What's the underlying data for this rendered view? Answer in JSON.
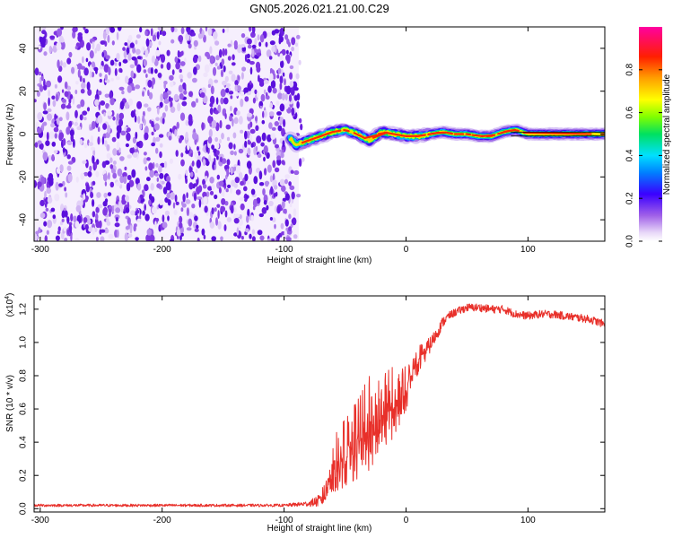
{
  "title": "GN05.2026.021.21.00.C29",
  "chart_data": [
    {
      "type": "heatmap",
      "name": "spectrogram",
      "xlabel": "Height of straight line (km)",
      "ylabel": "Frequency (Hz)",
      "xlim": [
        -305,
        163
      ],
      "ylim": [
        -50,
        50
      ],
      "xticks": [
        -300,
        -200,
        -100,
        0,
        100
      ],
      "yticks": [
        -40,
        -20,
        0,
        20,
        40
      ],
      "noise_region_x": [
        -305,
        -88
      ],
      "signal_ridge": {
        "x": [
          -95,
          -90,
          -80,
          -70,
          -60,
          -50,
          -40,
          -30,
          -20,
          -10,
          0,
          10,
          20,
          30,
          40,
          50,
          60,
          70,
          80,
          90,
          100,
          110,
          120,
          130,
          140,
          150,
          163
        ],
        "y": [
          -2,
          -5,
          -3,
          -1,
          1,
          2,
          0,
          -3,
          1,
          0,
          -1,
          -1,
          0,
          1,
          0,
          0,
          -1,
          -1,
          1,
          2,
          0,
          0,
          0,
          0,
          0,
          0,
          0
        ]
      },
      "colorbar": {
        "label": "Normalized spectral amplitude",
        "range": [
          0.0,
          1.0
        ],
        "ticks": [
          "0.0",
          "0.2",
          "0.4",
          "0.6",
          "0.8"
        ]
      }
    },
    {
      "type": "line",
      "name": "snr",
      "xlabel": "Height of straight line (km)",
      "ylabel": "SNR (10 * v/v)",
      "scale_label": "(x10",
      "scale_exp": "4",
      "xlim": [
        -305,
        163
      ],
      "ylim": [
        -0.02,
        1.28
      ],
      "xticks": [
        -300,
        -200,
        -100,
        0,
        100
      ],
      "yticks": [
        "0.0",
        "0.2",
        "0.4",
        "0.6",
        "0.8",
        "1.0",
        "1.2"
      ],
      "series": [
        {
          "name": "SNR",
          "color": "#e8302a",
          "x": [
            -305,
            -250,
            -200,
            -150,
            -100,
            -80,
            -70,
            -65,
            -60,
            -55,
            -50,
            -45,
            -40,
            -35,
            -30,
            -25,
            -20,
            -15,
            -10,
            -5,
            0,
            5,
            10,
            15,
            20,
            25,
            30,
            35,
            40,
            50,
            60,
            70,
            80,
            90,
            100,
            110,
            120,
            130,
            140,
            150,
            163
          ],
          "values": [
            0.02,
            0.02,
            0.02,
            0.02,
            0.02,
            0.03,
            0.05,
            0.12,
            0.22,
            0.27,
            0.3,
            0.33,
            0.38,
            0.44,
            0.47,
            0.48,
            0.55,
            0.58,
            0.6,
            0.63,
            0.7,
            0.82,
            0.88,
            0.93,
            0.99,
            1.05,
            1.12,
            1.16,
            1.18,
            1.21,
            1.21,
            1.2,
            1.2,
            1.17,
            1.16,
            1.17,
            1.17,
            1.16,
            1.15,
            1.14,
            1.11
          ],
          "noise_amplitude": [
            0.01,
            0.01,
            0.01,
            0.01,
            0.01,
            0.02,
            0.05,
            0.12,
            0.2,
            0.22,
            0.25,
            0.25,
            0.3,
            0.35,
            0.35,
            0.3,
            0.3,
            0.28,
            0.25,
            0.2,
            0.16,
            0.12,
            0.1,
            0.08,
            0.06,
            0.05,
            0.04,
            0.03,
            0.03,
            0.03,
            0.03,
            0.03,
            0.03,
            0.03,
            0.03,
            0.03,
            0.03,
            0.03,
            0.03,
            0.03,
            0.03
          ]
        }
      ]
    }
  ]
}
